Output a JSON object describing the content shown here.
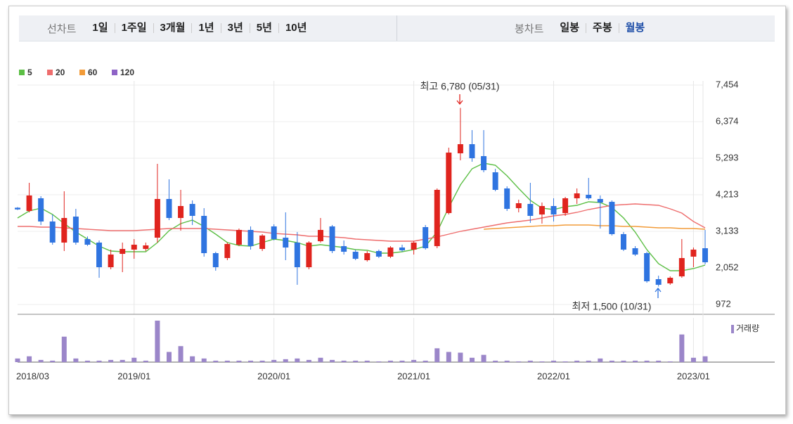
{
  "toolbar": {
    "line_label": "선차트",
    "ranges": [
      "1일",
      "1주일",
      "3개월",
      "1년",
      "3년",
      "5년",
      "10년"
    ],
    "candle_label": "봉차트",
    "periods": [
      "일봉",
      "주봉",
      "월봉"
    ],
    "selected_period": "월봉"
  },
  "chart_data": {
    "type": "candlestick",
    "categories": [
      "2018/03",
      null,
      null,
      null,
      null,
      null,
      null,
      null,
      null,
      null,
      "2019/01",
      null,
      null,
      null,
      null,
      null,
      null,
      null,
      null,
      null,
      null,
      null,
      "2020/01",
      null,
      null,
      null,
      null,
      null,
      null,
      null,
      null,
      null,
      null,
      null,
      "2021/01",
      null,
      null,
      null,
      null,
      null,
      null,
      null,
      null,
      null,
      null,
      null,
      "2022/01",
      null,
      null,
      null,
      null,
      null,
      null,
      null,
      null,
      null,
      null,
      null,
      "2023/01",
      null
    ],
    "up_color": "#e0241e",
    "down_color": "#2f74e0",
    "ohlc": {
      "open": [
        3830,
        3734,
        4109,
        3423,
        2800,
        3568,
        2904,
        2800,
        2072,
        2466,
        2592,
        2612,
        2945,
        4088,
        3527,
        3942,
        3589,
        2488,
        2343,
        2737,
        3174,
        2612,
        3278,
        2945,
        2800,
        2072,
        2840,
        3278,
        2695,
        2529,
        2280,
        2550,
        2384,
        2654,
        2592,
        3257,
        2695,
        3672,
        5438,
        5708,
        5355,
        4877,
        4400,
        3817,
        3942,
        3630,
        3880,
        3672,
        4109,
        4212,
        4088,
        4004,
        3050,
        2633,
        2488,
        1719,
        1594,
        1801,
        2384,
        2633
      ],
      "high": [
        3850,
        4566,
        4171,
        3630,
        4316,
        3796,
        2980,
        2862,
        2592,
        2800,
        2904,
        2800,
        5127,
        4670,
        4358,
        4046,
        3817,
        2529,
        2800,
        3215,
        3278,
        3050,
        3340,
        3693,
        3112,
        2840,
        3527,
        3319,
        2862,
        2592,
        2550,
        2592,
        2695,
        2737,
        2840,
        3319,
        4400,
        5605,
        6780,
        6124,
        6124,
        4981,
        4462,
        4067,
        4566,
        3984,
        4109,
        4150,
        4400,
        4711,
        4192,
        4046,
        3112,
        2695,
        2529,
        1822,
        1801,
        2904,
        2654,
        3174
      ],
      "low": [
        3760,
        3693,
        3319,
        2737,
        2550,
        2737,
        2700,
        1760,
        2010,
        1926,
        2321,
        2550,
        2800,
        3464,
        3153,
        3319,
        2384,
        1968,
        2280,
        2695,
        2592,
        2550,
        2862,
        2280,
        1552,
        2010,
        2800,
        2488,
        2446,
        2280,
        2238,
        2342,
        2342,
        2529,
        2446,
        2592,
        2633,
        3630,
        5231,
        5189,
        4877,
        4316,
        3734,
        3693,
        3381,
        3361,
        3423,
        3589,
        3942,
        4067,
        3215,
        3008,
        2550,
        2404,
        1614,
        1500,
        1552,
        1760,
        2072,
        2155
      ],
      "close": [
        3780,
        4192,
        3423,
        2800,
        3527,
        2800,
        2737,
        2072,
        2446,
        2612,
        2737,
        2716,
        4088,
        3527,
        3880,
        3589,
        2488,
        2072,
        2758,
        3174,
        2695,
        3008,
        2904,
        2654,
        2072,
        2800,
        3174,
        2550,
        2529,
        2321,
        2488,
        2384,
        2654,
        2571,
        2800,
        2633,
        4358,
        5459,
        5708,
        5293,
        4940,
        4358,
        3796,
        3963,
        3589,
        3880,
        3630,
        4109,
        4254,
        4109,
        3984,
        3050,
        2592,
        2446,
        1656,
        1552,
        1760,
        2342,
        2592,
        2218
      ]
    },
    "moving_averages": [
      {
        "name": "5",
        "color": "#5cbf45",
        "values": [
          3527,
          3734,
          3817,
          3630,
          3360,
          3111,
          2903,
          2695,
          2550,
          2529,
          2529,
          2529,
          2799,
          3153,
          3360,
          3464,
          3277,
          3049,
          2799,
          2716,
          2695,
          2799,
          2903,
          2862,
          2799,
          2695,
          2737,
          2695,
          2654,
          2592,
          2571,
          2488,
          2488,
          2529,
          2592,
          2695,
          3111,
          3838,
          4503,
          4981,
          5147,
          5085,
          4773,
          4399,
          4046,
          3817,
          3776,
          3859,
          3901,
          4005,
          3984,
          3838,
          3527,
          3111,
          2592,
          2176,
          1968,
          1968,
          2030,
          2134
        ]
      },
      {
        "name": "20",
        "color": "#ee6d6d",
        "values": [
          3277,
          3277,
          3256,
          3256,
          3236,
          3215,
          3194,
          3174,
          3153,
          3153,
          3153,
          3174,
          3194,
          3215,
          3215,
          3215,
          3215,
          3194,
          3174,
          3153,
          3132,
          3111,
          3069,
          3049,
          3028,
          2986,
          2986,
          2966,
          2945,
          2903,
          2882,
          2862,
          2841,
          2841,
          2841,
          2903,
          2966,
          3049,
          3132,
          3194,
          3256,
          3319,
          3381,
          3423,
          3464,
          3527,
          3589,
          3630,
          3693,
          3776,
          3838,
          3901,
          3921,
          3942,
          3921,
          3901,
          3796,
          3672,
          3423,
          3236
        ]
      },
      {
        "name": "60",
        "color": "#f29b38",
        "values": [
          null,
          null,
          null,
          null,
          null,
          null,
          null,
          null,
          null,
          null,
          null,
          null,
          null,
          null,
          null,
          null,
          null,
          null,
          null,
          null,
          null,
          null,
          null,
          null,
          null,
          null,
          null,
          null,
          null,
          null,
          null,
          null,
          null,
          null,
          null,
          null,
          null,
          null,
          null,
          null,
          3194,
          3215,
          3236,
          3256,
          3277,
          3298,
          3298,
          3319,
          3319,
          3319,
          3298,
          3298,
          3277,
          3277,
          3256,
          3236,
          3236,
          3215,
          3215,
          3194
        ]
      },
      {
        "name": "120",
        "color": "#8e63c6",
        "values": [
          null,
          null,
          null,
          null,
          null,
          null,
          null,
          null,
          null,
          null,
          null,
          null,
          null,
          null,
          null,
          null,
          null,
          null,
          null,
          null,
          null,
          null,
          null,
          null,
          null,
          null,
          null,
          null,
          null,
          null,
          null,
          null,
          null,
          null,
          null,
          null,
          null,
          null,
          null,
          null,
          null,
          null,
          null,
          null,
          null,
          null,
          null,
          null,
          null,
          null,
          null,
          null,
          null,
          null,
          null,
          null,
          null,
          null,
          null,
          null
        ]
      }
    ],
    "volume": {
      "name": "거래량",
      "color": "#9b86c9",
      "values": [
        5,
        8,
        3,
        2,
        35,
        5,
        2,
        2,
        3,
        3,
        6,
        2,
        57,
        14,
        22,
        8,
        5,
        2,
        2,
        2,
        2,
        2,
        3,
        4,
        5,
        3,
        6,
        3,
        2,
        2,
        2,
        1,
        2,
        2,
        3,
        2,
        19,
        14,
        13,
        6,
        10,
        2,
        2,
        1,
        2,
        1,
        2,
        1,
        2,
        2,
        5,
        2,
        2,
        2,
        2,
        2,
        1,
        38,
        6,
        8
      ]
    },
    "ylim": [
      680,
      7579
    ],
    "yticks": [
      {
        "value": 7454,
        "label": "7,454"
      },
      {
        "value": 6374,
        "label": "6,374"
      },
      {
        "value": 5293,
        "label": "5,293"
      },
      {
        "value": 4213,
        "label": "4,213"
      },
      {
        "value": 3133,
        "label": "3,133"
      },
      {
        "value": 2052,
        "label": "2,052"
      },
      {
        "value": 972,
        "label": "972"
      }
    ],
    "grid": true,
    "annotations": [
      "최고 6,780 (05/31)",
      "최저 1,500 (10/31)"
    ]
  }
}
